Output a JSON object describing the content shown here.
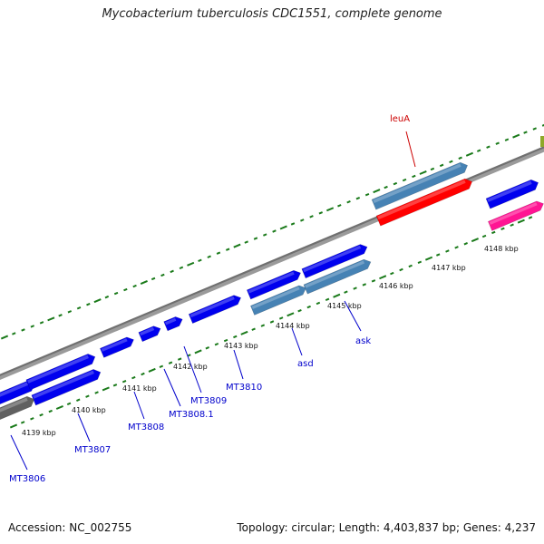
{
  "header": {
    "title": "Mycobacterium tuberculosis CDC1551, complete genome"
  },
  "footer": {
    "accession": "Accession: NC_002755",
    "stats": "Topology: circular; Length: 4,403,837 bp; Genes: 4,237"
  },
  "colors": {
    "cds": "#0000ee",
    "cds_light": "#4682b4",
    "rna": "#ff0000",
    "pink": "#ff1493",
    "backbone": "#808080",
    "dots": "#1a7a1a",
    "label": "#0000cc",
    "label_red": "#cc0000"
  },
  "ticks": [
    {
      "label": "4139 kbp"
    },
    {
      "label": "4140 kbp"
    },
    {
      "label": "4141 kbp"
    },
    {
      "label": "4142 kbp"
    },
    {
      "label": "4143 kbp"
    },
    {
      "label": "4144 kbp"
    },
    {
      "label": "4145 kbp"
    },
    {
      "label": "4146 kbp"
    },
    {
      "label": "4147 kbp"
    },
    {
      "label": "4148 kbp"
    }
  ],
  "gene_labels": [
    {
      "name": "MT3806",
      "color": "label"
    },
    {
      "name": "MT3807",
      "color": "label"
    },
    {
      "name": "MT3808",
      "color": "label"
    },
    {
      "name": "MT3808.1",
      "color": "label"
    },
    {
      "name": "MT3809",
      "color": "label"
    },
    {
      "name": "MT3810",
      "color": "label"
    },
    {
      "name": "asd",
      "color": "label"
    },
    {
      "name": "ask",
      "color": "label"
    },
    {
      "name": "leuA",
      "color": "label_red"
    }
  ]
}
